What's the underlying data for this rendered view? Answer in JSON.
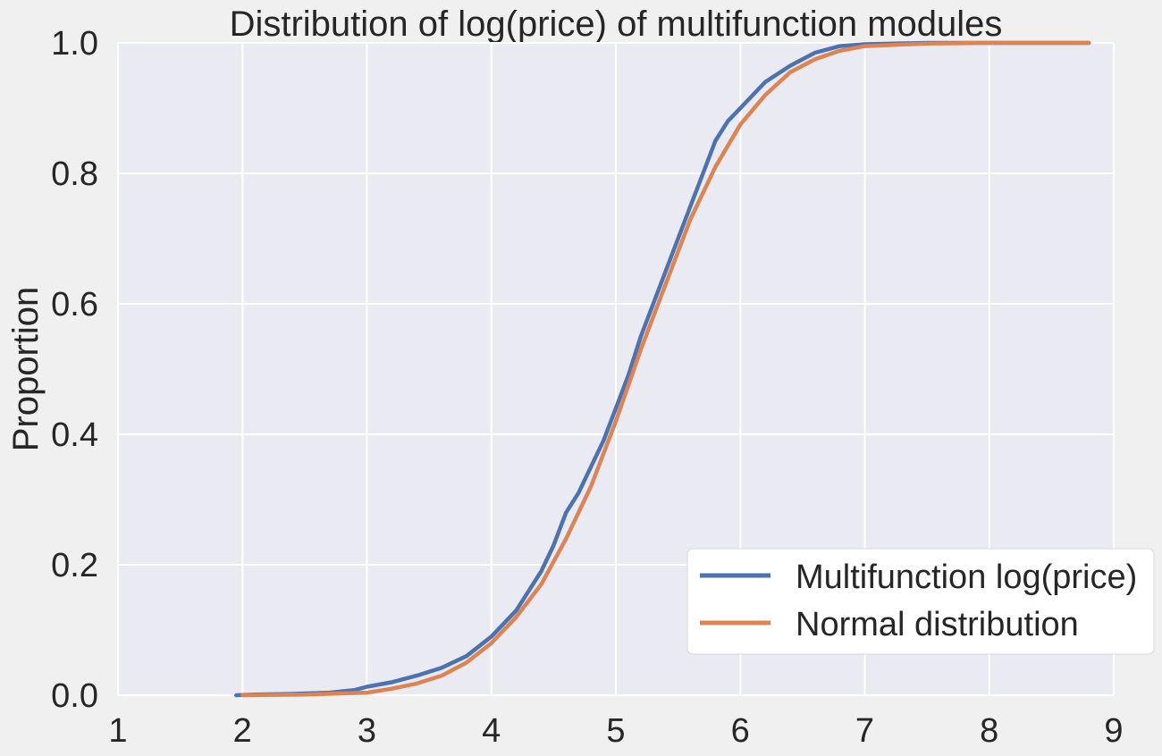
{
  "chart_data": {
    "type": "line",
    "title": "Distribution of log(price) of multifunction modules",
    "xlabel": "",
    "ylabel": "Proportion",
    "xlim": [
      1,
      9
    ],
    "ylim": [
      0,
      1
    ],
    "xticks": [
      "1",
      "2",
      "3",
      "4",
      "5",
      "6",
      "7",
      "8",
      "9"
    ],
    "yticks": [
      "0.0",
      "0.2",
      "0.4",
      "0.6",
      "0.8",
      "1.0"
    ],
    "grid": true,
    "legend_position": "bottom-right",
    "series": [
      {
        "name": "Multifunction log(price)",
        "color": "#4c72b0",
        "x": [
          1.95,
          2.1,
          2.4,
          2.7,
          2.9,
          3.0,
          3.2,
          3.4,
          3.6,
          3.8,
          4.0,
          4.2,
          4.4,
          4.5,
          4.6,
          4.7,
          4.8,
          4.9,
          5.0,
          5.1,
          5.2,
          5.3,
          5.4,
          5.5,
          5.6,
          5.7,
          5.8,
          5.9,
          6.0,
          6.2,
          6.4,
          6.6,
          6.8,
          7.0,
          7.5,
          8.0,
          8.8
        ],
        "y": [
          0.0,
          0.001,
          0.002,
          0.004,
          0.008,
          0.013,
          0.02,
          0.03,
          0.042,
          0.06,
          0.09,
          0.13,
          0.19,
          0.23,
          0.28,
          0.31,
          0.35,
          0.39,
          0.44,
          0.49,
          0.55,
          0.6,
          0.65,
          0.7,
          0.75,
          0.8,
          0.85,
          0.88,
          0.9,
          0.94,
          0.965,
          0.985,
          0.995,
          0.998,
          1.0,
          1.0,
          1.0
        ]
      },
      {
        "name": "Normal distribution",
        "color": "#dd8452",
        "x": [
          2.0,
          2.5,
          3.0,
          3.2,
          3.4,
          3.6,
          3.8,
          4.0,
          4.2,
          4.4,
          4.6,
          4.8,
          5.0,
          5.2,
          5.4,
          5.6,
          5.8,
          6.0,
          6.2,
          6.4,
          6.6,
          6.8,
          7.0,
          7.5,
          8.0,
          8.8
        ],
        "y": [
          0.0,
          0.001,
          0.004,
          0.01,
          0.018,
          0.03,
          0.05,
          0.08,
          0.12,
          0.17,
          0.24,
          0.32,
          0.42,
          0.53,
          0.63,
          0.73,
          0.81,
          0.875,
          0.92,
          0.955,
          0.975,
          0.988,
          0.995,
          0.999,
          1.0,
          1.0
        ]
      }
    ]
  }
}
